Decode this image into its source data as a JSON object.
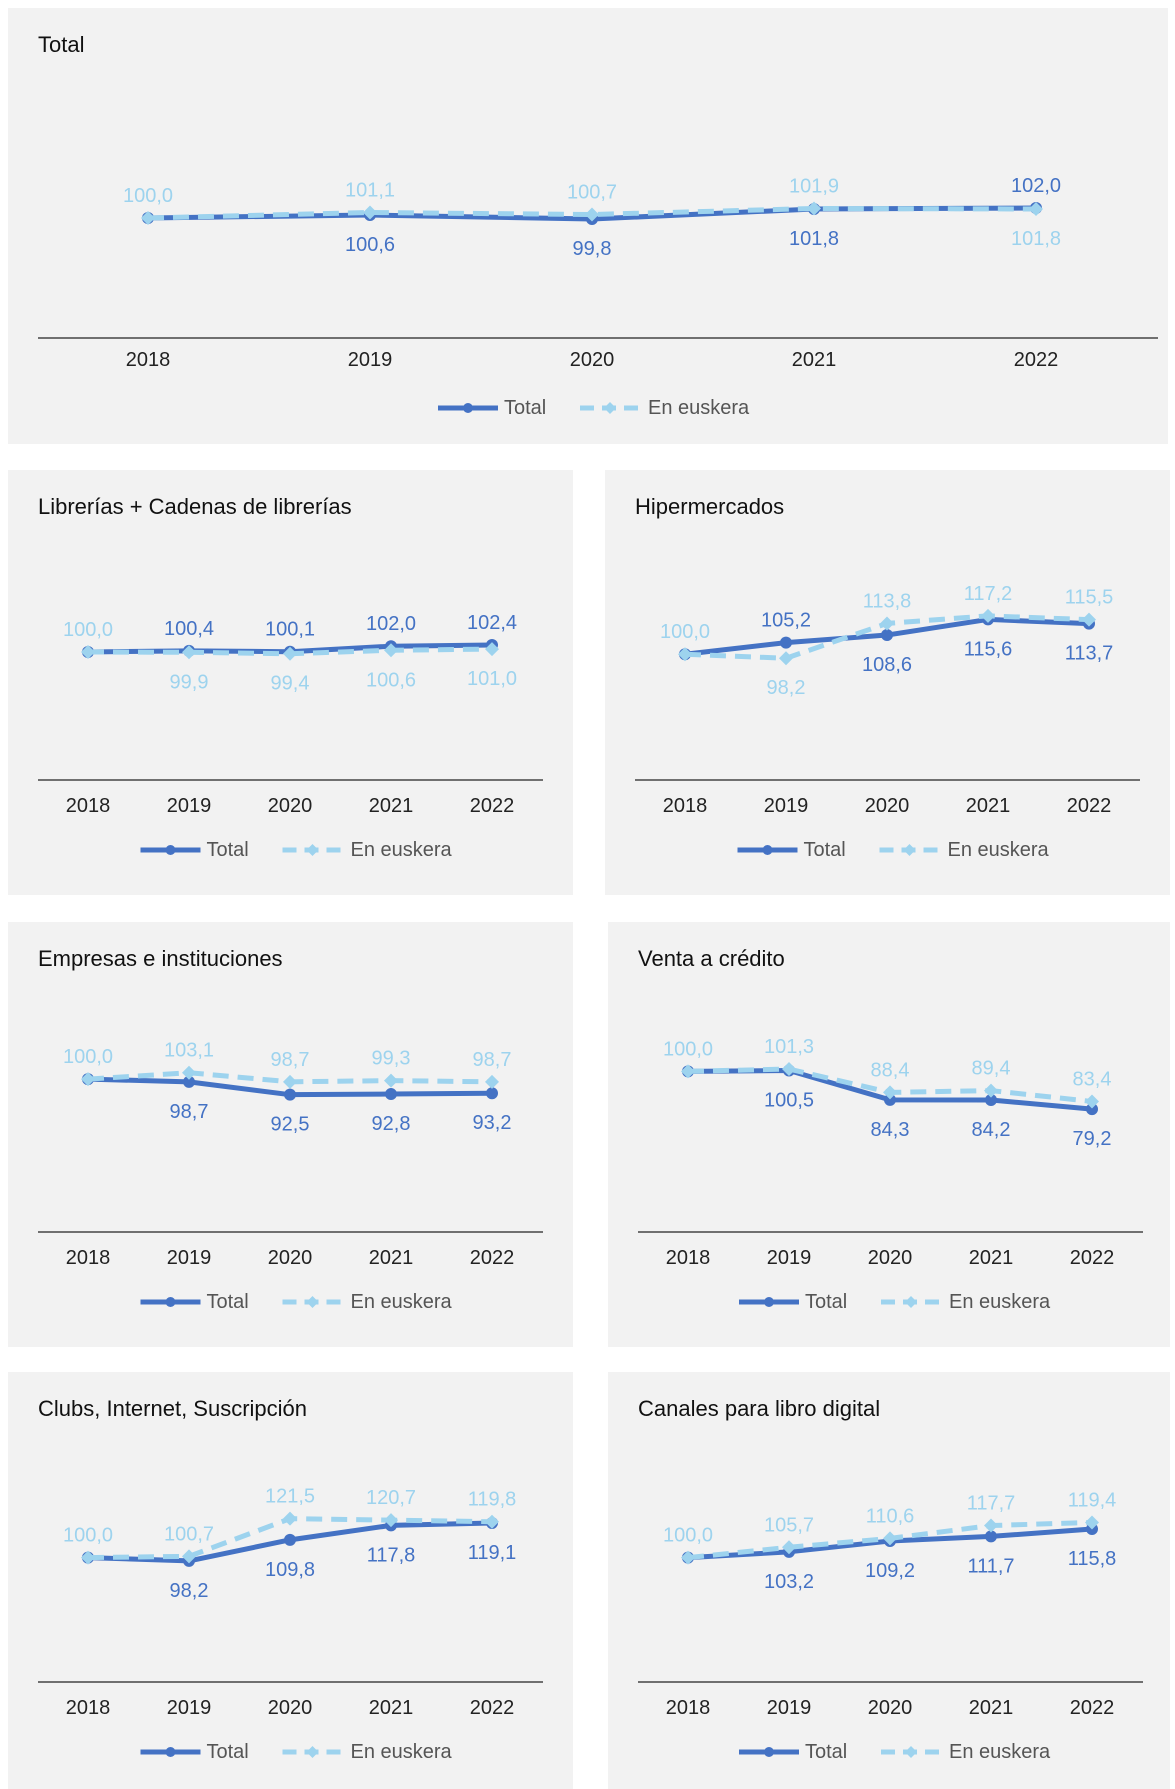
{
  "colors": {
    "total": "#4472c4",
    "euskera": "#9dd3ee",
    "axis": "#444444",
    "panel_bg": "#f2f2f2"
  },
  "legend": {
    "total_label": "Total",
    "euskera_label": "En euskera"
  },
  "chart_data": [
    {
      "type": "line",
      "title": "Total",
      "x": [
        "2018",
        "2019",
        "2020",
        "2021",
        "2022"
      ],
      "ylim": [
        80,
        120
      ],
      "series": [
        {
          "name": "Total",
          "values": [
            100.0,
            100.6,
            99.8,
            101.8,
            102.0
          ]
        },
        {
          "name": "En euskera",
          "values": [
            100.0,
            101.1,
            100.7,
            101.9,
            101.8
          ]
        }
      ],
      "labels": {
        "total": [
          "",
          "100,6",
          "99,8",
          "101,8",
          "102,0"
        ],
        "euskera": [
          "100,0",
          "101,1",
          "100,7",
          "101,9",
          "101,8"
        ]
      }
    },
    {
      "type": "line",
      "title": "Librerías + Cadenas de librerías",
      "x": [
        "2018",
        "2019",
        "2020",
        "2021",
        "2022"
      ],
      "ylim": [
        80,
        130
      ],
      "series": [
        {
          "name": "Total",
          "values": [
            100.0,
            100.4,
            100.1,
            102.0,
            102.4
          ]
        },
        {
          "name": "En euskera",
          "values": [
            100.0,
            99.9,
            99.4,
            100.6,
            101.0
          ]
        }
      ],
      "labels": {
        "total": [
          "",
          "100,4",
          "100,1",
          "102,0",
          "102,4"
        ],
        "euskera": [
          "100,0",
          "99,9",
          "99,4",
          "100,6",
          "101,0"
        ]
      }
    },
    {
      "type": "line",
      "title": "Hipermercados",
      "x": [
        "2018",
        "2019",
        "2020",
        "2021",
        "2022"
      ],
      "ylim": [
        75,
        140
      ],
      "series": [
        {
          "name": "Total",
          "values": [
            100.0,
            105.2,
            108.6,
            115.6,
            113.7
          ]
        },
        {
          "name": "En euskera",
          "values": [
            100.0,
            98.2,
            113.8,
            117.2,
            115.5
          ]
        }
      ],
      "labels": {
        "total": [
          "",
          "105,2",
          "108,6",
          "115,6",
          "113,7"
        ],
        "euskera": [
          "100,0",
          "98,2",
          "113,8",
          "117,2",
          "115,5"
        ]
      }
    },
    {
      "type": "line",
      "title": "Empresas e instituciones",
      "x": [
        "2018",
        "2019",
        "2020",
        "2021",
        "2022"
      ],
      "ylim": [
        60,
        130
      ],
      "series": [
        {
          "name": "Total",
          "values": [
            100.0,
            98.7,
            92.5,
            92.8,
            93.2
          ]
        },
        {
          "name": "En euskera",
          "values": [
            100.0,
            103.1,
            98.7,
            99.3,
            98.7
          ]
        }
      ],
      "labels": {
        "total": [
          "",
          "98,7",
          "92,5",
          "92,8",
          "93,2"
        ],
        "euskera": [
          "100,0",
          "103,1",
          "98,7",
          "99,3",
          "98,7"
        ]
      }
    },
    {
      "type": "line",
      "title": "Venta a crédito",
      "x": [
        "2018",
        "2019",
        "2020",
        "2021",
        "2022"
      ],
      "ylim": [
        50,
        130
      ],
      "series": [
        {
          "name": "Total",
          "values": [
            100.0,
            100.5,
            84.3,
            84.2,
            79.2
          ]
        },
        {
          "name": "En euskera",
          "values": [
            100.0,
            101.3,
            88.4,
            89.4,
            83.4
          ]
        }
      ],
      "labels": {
        "total": [
          "",
          "100,5",
          "84,3",
          "84,2",
          "79,2"
        ],
        "euskera": [
          "100,0",
          "101,3",
          "88,4",
          "89,4",
          "83,4"
        ]
      }
    },
    {
      "type": "line",
      "title": "Clubs, Internet, Suscripción",
      "x": [
        "2018",
        "2019",
        "2020",
        "2021",
        "2022"
      ],
      "ylim": [
        70,
        150
      ],
      "series": [
        {
          "name": "Total",
          "values": [
            100.0,
            98.2,
            109.8,
            117.8,
            119.1
          ]
        },
        {
          "name": "En euskera",
          "values": [
            100.0,
            100.7,
            121.5,
            120.7,
            119.8
          ]
        }
      ],
      "labels": {
        "total": [
          "",
          "98,2",
          "109,8",
          "117,8",
          "119,1"
        ],
        "euskera": [
          "100,0",
          "100,7",
          "121,5",
          "120,7",
          "119,8"
        ]
      }
    },
    {
      "type": "line",
      "title": "Canales para libro digital",
      "x": [
        "2018",
        "2019",
        "2020",
        "2021",
        "2022"
      ],
      "ylim": [
        70,
        150
      ],
      "series": [
        {
          "name": "Total",
          "values": [
            100.0,
            103.2,
            109.2,
            111.7,
            115.8
          ]
        },
        {
          "name": "En euskera",
          "values": [
            100.0,
            105.7,
            110.6,
            117.7,
            119.4
          ]
        }
      ],
      "labels": {
        "total": [
          "",
          "103,2",
          "109,2",
          "111,7",
          "115,8"
        ],
        "euskera": [
          "100,0",
          "105,7",
          "110,6",
          "117,7",
          "119,4"
        ]
      }
    }
  ]
}
